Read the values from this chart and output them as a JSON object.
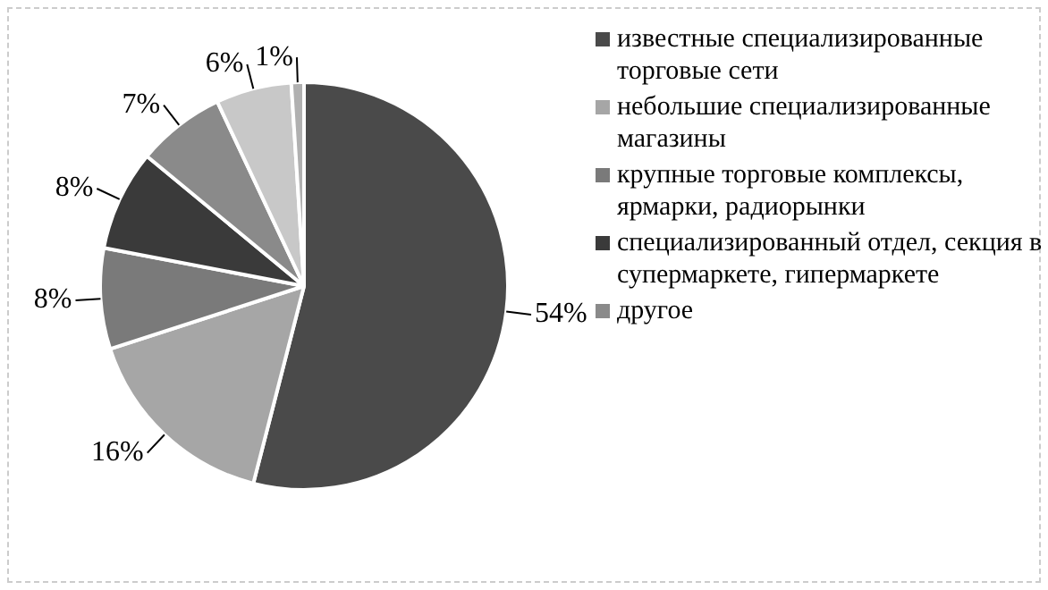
{
  "chart_data": {
    "type": "pie",
    "categories": [
      "известные специализированные торговые сети",
      "небольшие специализированные магазины",
      "крупные торговые комплексы, ярмарки, радиорынки",
      "специализированный отдел, секция в супермаркете, гипермаркете",
      "другое",
      null,
      null
    ],
    "values": [
      54,
      16,
      8,
      8,
      7,
      6,
      1
    ],
    "colors": [
      "#4a4a4a",
      "#a6a6a6",
      "#7a7a7a",
      "#3a3a3a",
      "#8a8a8a",
      "#c8c8c8",
      "#b0b0b0"
    ],
    "value_labels": [
      "54%",
      "16%",
      "8%",
      "8%",
      "7%",
      "6%",
      "1%"
    ],
    "legend": "right"
  }
}
